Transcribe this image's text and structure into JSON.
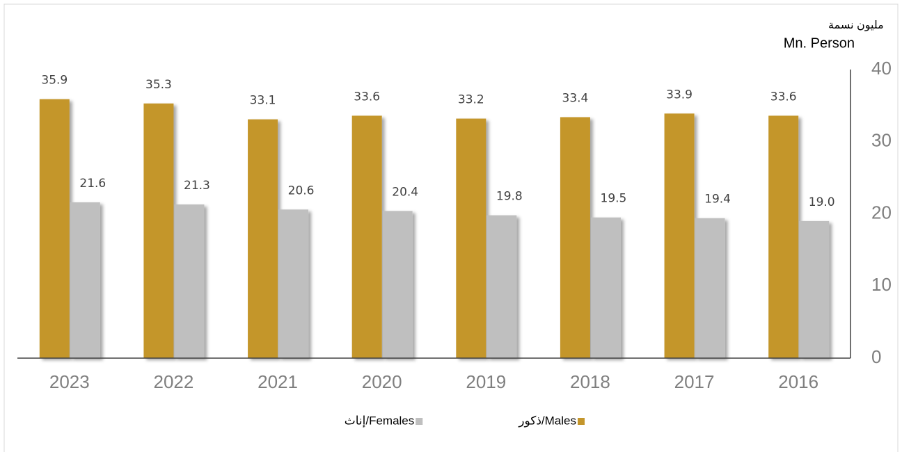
{
  "chart_data": {
    "type": "bar",
    "y_label": [
      "مليون نسمة",
      "Mn. Person"
    ],
    "categories": [
      "2023",
      "2022",
      "2021",
      "2020",
      "2019",
      "2018",
      "2017",
      "2016"
    ],
    "series": [
      {
        "name": "Males/ذكور",
        "color": "#c4962c",
        "values": [
          35.9,
          35.3,
          33.1,
          33.6,
          33.2,
          33.4,
          33.9,
          33.6
        ],
        "value_labels": [
          "35.9",
          "35.3",
          "33.1",
          "33.6",
          "33.2",
          "33.4",
          "33.9",
          "33.6"
        ]
      },
      {
        "name": "Females/إناث",
        "color": "#bfbfbf",
        "values": [
          21.6,
          21.3,
          20.6,
          20.4,
          19.8,
          19.5,
          19.4,
          19.0
        ],
        "value_labels": [
          "21.6",
          "21.3",
          "20.6",
          "20.4",
          "19.8",
          "19.5",
          "19.4",
          "19.0"
        ]
      }
    ],
    "ylim": [
      0,
      40
    ],
    "yticks": [
      0,
      10,
      20,
      30,
      40
    ],
    "y_axis_side": "right",
    "grid": false,
    "legend": "bottom"
  }
}
